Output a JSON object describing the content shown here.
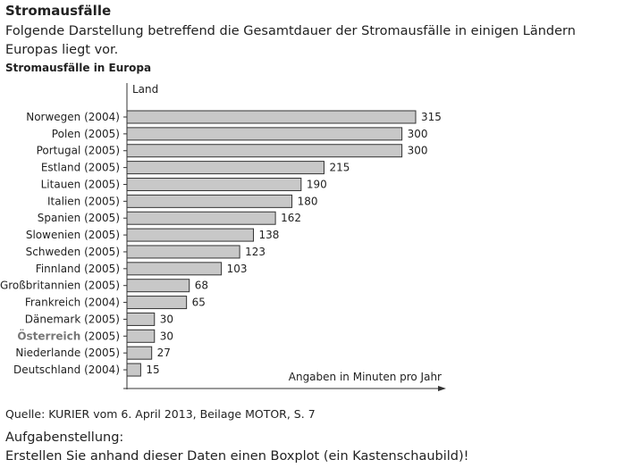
{
  "heading": "Stromausfälle",
  "intro": "Folgende Darstellung betreffend die Gesamtdauer der Stromausfälle in einigen Ländern Europas liegt vor.",
  "chart_data": {
    "type": "bar",
    "orientation": "horizontal",
    "title": "Stromausfälle in Europa",
    "ylabel": "Land",
    "xlabel": "Angaben in Minuten pro Jahr",
    "categories": [
      "Norwegen (2004)",
      "Polen (2005)",
      "Portugal (2005)",
      "Estland (2005)",
      "Litauen (2005)",
      "Italien (2005)",
      "Spanien (2005)",
      "Slowenien (2005)",
      "Schweden (2005)",
      "Finnland (2005)",
      "Großbritannien (2005)",
      "Frankreich (2004)",
      "Dänemark (2005)",
      "Österreich (2005)",
      "Niederlande (2005)",
      "Deutschland (2004)"
    ],
    "values": [
      315,
      300,
      300,
      215,
      190,
      180,
      162,
      138,
      123,
      103,
      68,
      65,
      30,
      30,
      27,
      15
    ],
    "highlight": "Österreich",
    "bar_color": "#c8c8c8",
    "highlight_color": "#777777",
    "xlim": [
      0,
      345
    ]
  },
  "source": "Quelle: KURIER vom 6. April 2013, Beilage MOTOR, S. 7",
  "task_heading": "Aufgabenstellung:",
  "task": "Erstellen Sie anhand dieser Daten einen Boxplot (ein Kastenschaubild)!"
}
